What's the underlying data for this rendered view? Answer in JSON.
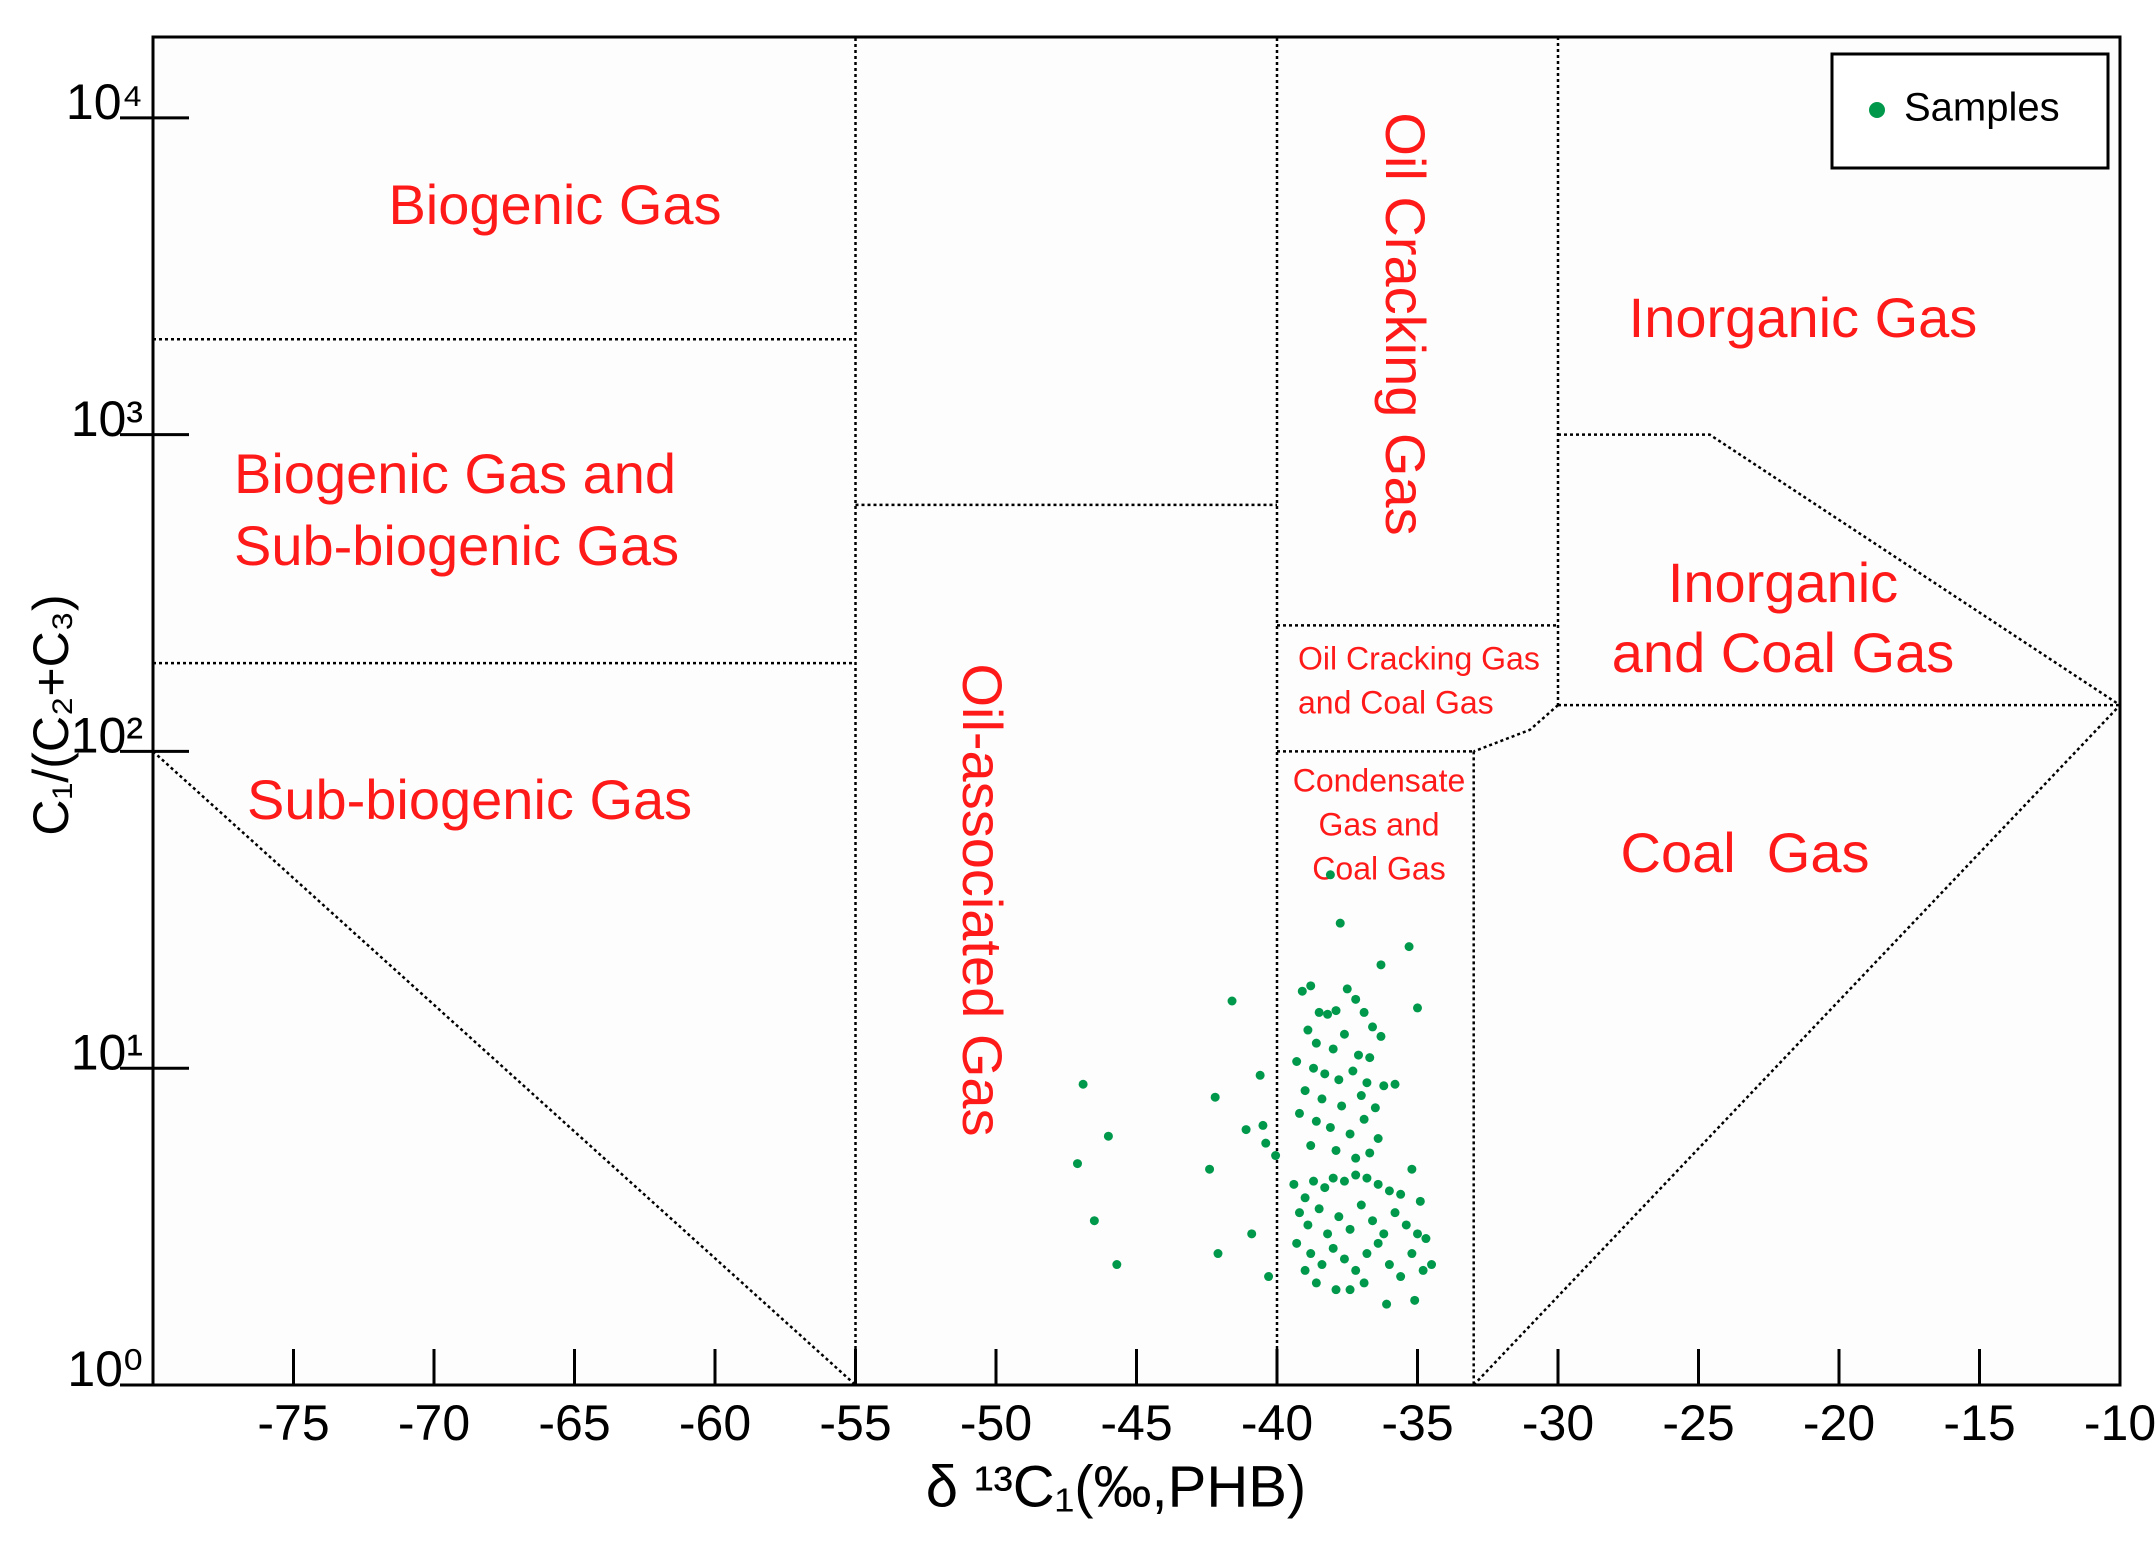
{
  "chart_data": {
    "type": "scatter",
    "x_label": "δ ¹³C₁(‰,PHB)",
    "y_label": "C₁/(C₂+C₃)",
    "xlim": [
      -80,
      -10
    ],
    "xticks": [
      -75,
      -70,
      -65,
      -60,
      -55,
      -50,
      -45,
      -40,
      -35,
      -30,
      -25,
      -20,
      -15,
      -10
    ],
    "ylim": [
      1,
      18000
    ],
    "y_log": true,
    "yticks": [
      {
        "value": 1,
        "label": "10⁰"
      },
      {
        "value": 10,
        "label": "10¹"
      },
      {
        "value": 100,
        "label": "10²"
      },
      {
        "value": 1000,
        "label": "10³"
      },
      {
        "value": 10000,
        "label": "10⁴"
      }
    ],
    "legend": "upper right",
    "series": [
      {
        "name": "Samples",
        "color": "#00994c",
        "x": [
          -46.9,
          -46.0,
          -47.1,
          -46.5,
          -45.7,
          -41.6,
          -42.2,
          -42.4,
          -42.1,
          -41.1,
          -40.9,
          -40.6,
          -40.4,
          -40.3,
          -40.05,
          -40.5,
          -38.1,
          -37.75,
          -35.3,
          -36.3,
          -35.0,
          -39.1,
          -38.8,
          -38.5,
          -38.2,
          -37.9,
          -37.5,
          -37.2,
          -36.9,
          -36.6,
          -36.3,
          -38.9,
          -38.6,
          -38.0,
          -37.6,
          -37.1,
          -36.7,
          -39.3,
          -38.7,
          -38.3,
          -37.8,
          -37.3,
          -36.8,
          -36.2,
          -35.8,
          -39.0,
          -38.4,
          -37.7,
          -37.0,
          -36.5,
          -39.2,
          -38.6,
          -38.1,
          -37.4,
          -36.9,
          -36.4,
          -38.8,
          -37.9,
          -37.2,
          -36.7,
          -39.4,
          -39.0,
          -38.7,
          -38.3,
          -38.0,
          -37.6,
          -37.2,
          -36.8,
          -36.4,
          -36.0,
          -35.6,
          -35.2,
          -34.9,
          -39.2,
          -38.9,
          -38.5,
          -38.2,
          -37.8,
          -37.4,
          -37.0,
          -36.6,
          -36.2,
          -35.8,
          -35.4,
          -35.0,
          -34.7,
          -39.3,
          -38.8,
          -38.4,
          -38.0,
          -37.6,
          -37.2,
          -36.8,
          -36.4,
          -36.0,
          -35.6,
          -35.2,
          -34.8,
          -34.5,
          -38.6,
          -37.9,
          -37.4,
          -36.9,
          -36.1,
          -35.1,
          -39.0
        ],
        "values": [
          8.9,
          6.1,
          5.0,
          3.3,
          2.4,
          16.3,
          8.1,
          4.8,
          2.6,
          6.4,
          3.0,
          9.5,
          5.8,
          2.2,
          5.3,
          6.6,
          40.8,
          28.7,
          24.2,
          21.2,
          15.5,
          17.5,
          18.2,
          15.0,
          14.8,
          15.2,
          17.8,
          16.5,
          15.0,
          13.5,
          12.6,
          13.2,
          12.0,
          11.5,
          12.8,
          11.0,
          10.8,
          10.5,
          10.0,
          9.6,
          9.2,
          9.8,
          9.0,
          8.8,
          8.9,
          8.5,
          8.0,
          7.6,
          8.2,
          7.5,
          7.2,
          6.8,
          6.5,
          6.2,
          6.9,
          6.0,
          5.7,
          5.5,
          5.2,
          5.4,
          4.3,
          3.9,
          4.4,
          4.2,
          4.5,
          4.4,
          4.6,
          4.5,
          4.3,
          4.1,
          4.0,
          4.8,
          3.8,
          3.5,
          3.2,
          3.6,
          3.0,
          3.4,
          3.1,
          3.7,
          3.3,
          3.0,
          3.5,
          3.2,
          3.0,
          2.9,
          2.8,
          2.6,
          2.4,
          2.7,
          2.5,
          2.3,
          2.6,
          2.8,
          2.4,
          2.2,
          2.6,
          2.3,
          2.4,
          2.1,
          2.0,
          2.0,
          2.1,
          1.8,
          1.85,
          2.3
        ]
      }
    ],
    "boundaries": [
      {
        "x": [
          -55,
          -55
        ],
        "y": [
          1,
          18000
        ]
      },
      {
        "x": [
          -80,
          -55
        ],
        "y": [
          2000,
          2000
        ]
      },
      {
        "x": [
          -80,
          -55
        ],
        "y": [
          190,
          190
        ]
      },
      {
        "x": [
          -80,
          -55
        ],
        "y": [
          100,
          1
        ]
      },
      {
        "x": [
          -55,
          -40
        ],
        "y": [
          600,
          600
        ]
      },
      {
        "x": [
          -40,
          -40
        ],
        "y": [
          1,
          18000
        ]
      },
      {
        "x": [
          -30,
          -30
        ],
        "y": [
          18000,
          140
        ]
      },
      {
        "x": [
          -40,
          -30
        ],
        "y": [
          250,
          250
        ]
      },
      {
        "x": [
          -30,
          -31,
          -33
        ],
        "y": [
          140,
          117,
          100
        ]
      },
      {
        "x": [
          -40,
          -33
        ],
        "y": [
          100,
          100
        ]
      },
      {
        "x": [
          -33,
          -33
        ],
        "y": [
          100,
          1
        ]
      },
      {
        "x": [
          -30,
          -24.6,
          -10
        ],
        "y": [
          1000,
          1000,
          140
        ]
      },
      {
        "x": [
          -30,
          -10
        ],
        "y": [
          140,
          140
        ]
      },
      {
        "x": [
          -33,
          -10
        ],
        "y": [
          1,
          140
        ]
      }
    ],
    "region_labels": [
      [
        "Biogenic Gas"
      ],
      [
        "Biogenic Gas and",
        "Sub-biogenic Gas"
      ],
      [
        "Sub-biogenic Gas"
      ],
      [
        "Oil-associated Gas"
      ],
      [
        "Oil Cracking Gas"
      ],
      [
        "Inorganic Gas"
      ],
      [
        "Inorganic",
        "and Coal Gas"
      ],
      [
        "Oil Cracking Gas",
        "and Coal Gas"
      ],
      [
        "Condensate",
        "Gas and",
        "Coal Gas"
      ],
      [
        "Coal  Gas"
      ]
    ]
  }
}
